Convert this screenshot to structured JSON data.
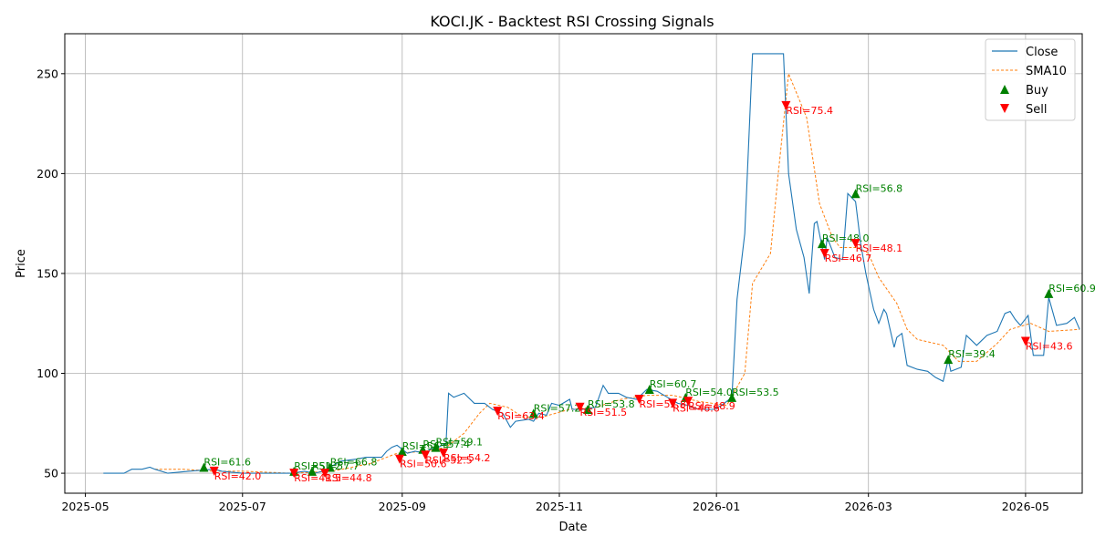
{
  "chart_data": {
    "type": "line",
    "title": "KOCI.JK - Backtest RSI Crossing Signals",
    "xlabel": "Date",
    "ylabel": "Price",
    "xlim": [
      "2025-04-23",
      "2026-05-23"
    ],
    "ylim": [
      40,
      270
    ],
    "grid": true,
    "legend_position": "top-right",
    "x_ticks": [
      "2025-05",
      "2025-07",
      "2025-09",
      "2025-11",
      "2026-01",
      "2026-03",
      "2026-05"
    ],
    "y_ticks": [
      50,
      100,
      150,
      200,
      250
    ],
    "colors": {
      "close": "#1f77b4",
      "sma": "#ff7f0e",
      "buy": "#008000",
      "sell": "#ff0000",
      "grid": "#b0b0b0"
    },
    "legend": [
      {
        "key": "close",
        "label": "Close",
        "style": "line"
      },
      {
        "key": "sma",
        "label": "SMA10",
        "style": "dashed"
      },
      {
        "key": "buy",
        "label": "Buy",
        "style": "up-triangle"
      },
      {
        "key": "sell",
        "label": "Sell",
        "style": "down-triangle"
      }
    ],
    "series": [
      {
        "name": "Close",
        "points": [
          [
            "2025-05-08",
            50
          ],
          [
            "2025-05-16",
            50
          ],
          [
            "2025-05-19",
            52
          ],
          [
            "2025-05-23",
            52
          ],
          [
            "2025-05-26",
            53
          ],
          [
            "2025-05-28",
            52
          ],
          [
            "2025-06-02",
            50
          ],
          [
            "2025-06-10",
            51
          ],
          [
            "2025-06-20",
            52
          ],
          [
            "2025-06-23",
            51
          ],
          [
            "2025-07-01",
            50
          ],
          [
            "2025-07-15",
            50
          ],
          [
            "2025-07-20",
            50
          ],
          [
            "2025-07-25",
            51
          ],
          [
            "2025-07-29",
            50
          ],
          [
            "2025-08-01",
            51
          ],
          [
            "2025-08-04",
            53
          ],
          [
            "2025-08-08",
            56
          ],
          [
            "2025-08-14",
            57
          ],
          [
            "2025-08-18",
            58
          ],
          [
            "2025-08-24",
            58
          ],
          [
            "2025-08-26",
            61
          ],
          [
            "2025-08-28",
            63
          ],
          [
            "2025-08-30",
            64
          ],
          [
            "2025-09-01",
            62
          ],
          [
            "2025-09-03",
            60
          ],
          [
            "2025-09-06",
            61
          ],
          [
            "2025-09-10",
            60
          ],
          [
            "2025-09-12",
            62
          ],
          [
            "2025-09-15",
            63
          ],
          [
            "2025-09-18",
            65
          ],
          [
            "2025-09-19",
            90
          ],
          [
            "2025-09-21",
            88
          ],
          [
            "2025-09-25",
            90
          ],
          [
            "2025-09-29",
            85
          ],
          [
            "2025-10-03",
            85
          ],
          [
            "2025-10-06",
            82
          ],
          [
            "2025-10-10",
            80
          ],
          [
            "2025-10-13",
            73
          ],
          [
            "2025-10-15",
            76
          ],
          [
            "2025-10-20",
            77
          ],
          [
            "2025-10-22",
            76
          ],
          [
            "2025-10-24",
            80
          ],
          [
            "2025-10-27",
            79
          ],
          [
            "2025-10-29",
            85
          ],
          [
            "2025-11-01",
            84
          ],
          [
            "2025-11-05",
            87
          ],
          [
            "2025-11-06",
            82
          ],
          [
            "2025-11-10",
            82
          ],
          [
            "2025-11-15",
            83
          ],
          [
            "2025-11-18",
            94
          ],
          [
            "2025-11-20",
            90
          ],
          [
            "2025-11-24",
            90
          ],
          [
            "2025-11-27",
            88
          ],
          [
            "2025-12-01",
            87
          ],
          [
            "2025-12-05",
            92
          ],
          [
            "2025-12-09",
            91
          ],
          [
            "2025-12-13",
            88
          ],
          [
            "2025-12-17",
            85
          ],
          [
            "2025-12-21",
            84
          ],
          [
            "2025-12-25",
            82
          ],
          [
            "2025-12-31",
            82
          ],
          [
            "2026-01-03",
            84
          ],
          [
            "2026-01-07",
            88
          ],
          [
            "2026-01-09",
            137
          ],
          [
            "2026-01-12",
            170
          ],
          [
            "2026-01-15",
            260
          ],
          [
            "2026-01-20",
            260
          ],
          [
            "2026-01-25",
            260
          ],
          [
            "2026-01-27",
            260
          ],
          [
            "2026-01-29",
            200
          ],
          [
            "2026-02-01",
            172
          ],
          [
            "2026-02-04",
            158
          ],
          [
            "2026-02-06",
            140
          ],
          [
            "2026-02-08",
            175
          ],
          [
            "2026-02-09",
            176
          ],
          [
            "2026-02-12",
            157
          ],
          [
            "2026-02-13",
            168
          ],
          [
            "2026-02-16",
            158
          ],
          [
            "2026-02-19",
            157
          ],
          [
            "2026-02-21",
            190
          ],
          [
            "2026-02-24",
            186
          ],
          [
            "2026-02-26",
            165
          ],
          [
            "2026-02-28",
            150
          ],
          [
            "2026-03-03",
            132
          ],
          [
            "2026-03-05",
            125
          ],
          [
            "2026-03-07",
            132
          ],
          [
            "2026-03-08",
            130
          ],
          [
            "2026-03-11",
            113
          ],
          [
            "2026-03-12",
            118
          ],
          [
            "2026-03-14",
            120
          ],
          [
            "2026-03-16",
            104
          ],
          [
            "2026-03-20",
            102
          ],
          [
            "2026-03-24",
            101
          ],
          [
            "2026-03-27",
            98
          ],
          [
            "2026-03-30",
            96
          ],
          [
            "2026-04-01",
            107
          ],
          [
            "2026-04-02",
            101
          ],
          [
            "2026-04-06",
            103
          ],
          [
            "2026-04-08",
            119
          ],
          [
            "2026-04-12",
            114
          ],
          [
            "2026-04-16",
            119
          ],
          [
            "2026-04-20",
            121
          ],
          [
            "2026-04-23",
            130
          ],
          [
            "2026-04-25",
            131
          ],
          [
            "2026-04-27",
            127
          ],
          [
            "2026-04-29",
            124
          ],
          [
            "2026-05-02",
            129
          ],
          [
            "2026-05-04",
            109
          ],
          [
            "2026-05-08",
            109
          ],
          [
            "2026-05-10",
            138
          ],
          [
            "2026-05-13",
            124
          ],
          [
            "2026-05-17",
            125
          ],
          [
            "2026-05-20",
            128
          ],
          [
            "2026-05-22",
            122
          ]
        ]
      },
      {
        "name": "SMA10",
        "points": [
          [
            "2025-05-28",
            52
          ],
          [
            "2025-06-08",
            52
          ],
          [
            "2025-06-20",
            51
          ],
          [
            "2025-07-01",
            51
          ],
          [
            "2025-07-20",
            50
          ],
          [
            "2025-08-05",
            51
          ],
          [
            "2025-08-20",
            55
          ],
          [
            "2025-08-30",
            60
          ],
          [
            "2025-09-10",
            61
          ],
          [
            "2025-09-18",
            63
          ],
          [
            "2025-09-25",
            70
          ],
          [
            "2025-10-01",
            80
          ],
          [
            "2025-10-05",
            85
          ],
          [
            "2025-10-12",
            83
          ],
          [
            "2025-10-18",
            78
          ],
          [
            "2025-10-25",
            78
          ],
          [
            "2025-11-05",
            82
          ],
          [
            "2025-11-15",
            83
          ],
          [
            "2025-11-25",
            87
          ],
          [
            "2025-12-05",
            89
          ],
          [
            "2025-12-15",
            89
          ],
          [
            "2025-12-25",
            86
          ],
          [
            "2026-01-05",
            84
          ],
          [
            "2026-01-12",
            100
          ],
          [
            "2026-01-15",
            145
          ],
          [
            "2026-01-22",
            160
          ],
          [
            "2026-01-25",
            200
          ],
          [
            "2026-01-29",
            250
          ],
          [
            "2026-02-05",
            228
          ],
          [
            "2026-02-10",
            185
          ],
          [
            "2026-02-15",
            168
          ],
          [
            "2026-02-18",
            163
          ],
          [
            "2026-02-25",
            163
          ],
          [
            "2026-03-01",
            160
          ],
          [
            "2026-03-05",
            148
          ],
          [
            "2026-03-12",
            135
          ],
          [
            "2026-03-16",
            122
          ],
          [
            "2026-03-20",
            117
          ],
          [
            "2026-03-30",
            114
          ],
          [
            "2026-04-05",
            106
          ],
          [
            "2026-04-12",
            106
          ],
          [
            "2026-04-20",
            115
          ],
          [
            "2026-04-25",
            122
          ],
          [
            "2026-05-03",
            125
          ],
          [
            "2026-05-10",
            121
          ],
          [
            "2026-05-22",
            122
          ]
        ]
      }
    ],
    "buy_signals": [
      {
        "date": "2025-06-16",
        "price": 53,
        "label": "RSI=61.6"
      },
      {
        "date": "2025-07-21",
        "price": 51,
        "label": "RSI=51.2"
      },
      {
        "date": "2025-07-28",
        "price": 51,
        "label": "RSI=57.7"
      },
      {
        "date": "2025-08-04",
        "price": 53,
        "label": "RSI=66.8"
      },
      {
        "date": "2025-09-01",
        "price": 61,
        "label": "RSI=56.4"
      },
      {
        "date": "2025-09-09",
        "price": 62,
        "label": "RSI=57.4"
      },
      {
        "date": "2025-09-14",
        "price": 63,
        "label": "RSI=59.1"
      },
      {
        "date": "2025-10-22",
        "price": 80,
        "label": "RSI=57.2"
      },
      {
        "date": "2025-11-12",
        "price": 82,
        "label": "RSI=53.8"
      },
      {
        "date": "2025-12-06",
        "price": 92,
        "label": "RSI=60.7"
      },
      {
        "date": "2025-12-20",
        "price": 88,
        "label": "RSI=54.0"
      },
      {
        "date": "2026-01-07",
        "price": 88,
        "label": "RSI=53.5"
      },
      {
        "date": "2026-02-11",
        "price": 165,
        "label": "RSI=48.0"
      },
      {
        "date": "2026-02-24",
        "price": 190,
        "label": "RSI=56.8"
      },
      {
        "date": "2026-04-01",
        "price": 107,
        "label": "RSI=39.4"
      },
      {
        "date": "2026-05-10",
        "price": 140,
        "label": "RSI=60.9"
      }
    ],
    "sell_signals": [
      {
        "date": "2025-06-20",
        "price": 51,
        "label": "RSI=42.0"
      },
      {
        "date": "2025-07-21",
        "price": 50,
        "label": "RSI=41.5"
      },
      {
        "date": "2025-08-02",
        "price": 50,
        "label": "RSI=44.8"
      },
      {
        "date": "2025-08-31",
        "price": 57,
        "label": "RSI=50.6"
      },
      {
        "date": "2025-09-10",
        "price": 59,
        "label": "RSI=52.5"
      },
      {
        "date": "2025-09-17",
        "price": 60,
        "label": "RSI=54.2"
      },
      {
        "date": "2025-10-08",
        "price": 81,
        "label": "RSI=63.4"
      },
      {
        "date": "2025-11-09",
        "price": 83,
        "label": "RSI=51.5"
      },
      {
        "date": "2025-12-02",
        "price": 87,
        "label": "RSI=52.8"
      },
      {
        "date": "2025-12-15",
        "price": 85,
        "label": "RSI=46.6"
      },
      {
        "date": "2025-12-21",
        "price": 86,
        "label": "RSI=48.9"
      },
      {
        "date": "2026-01-28",
        "price": 234,
        "label": "RSI=75.4"
      },
      {
        "date": "2026-02-12",
        "price": 160,
        "label": "RSI=46.7"
      },
      {
        "date": "2026-02-24",
        "price": 165,
        "label": "RSI=48.1"
      },
      {
        "date": "2026-05-01",
        "price": 116,
        "label": "RSI=43.6"
      }
    ]
  }
}
